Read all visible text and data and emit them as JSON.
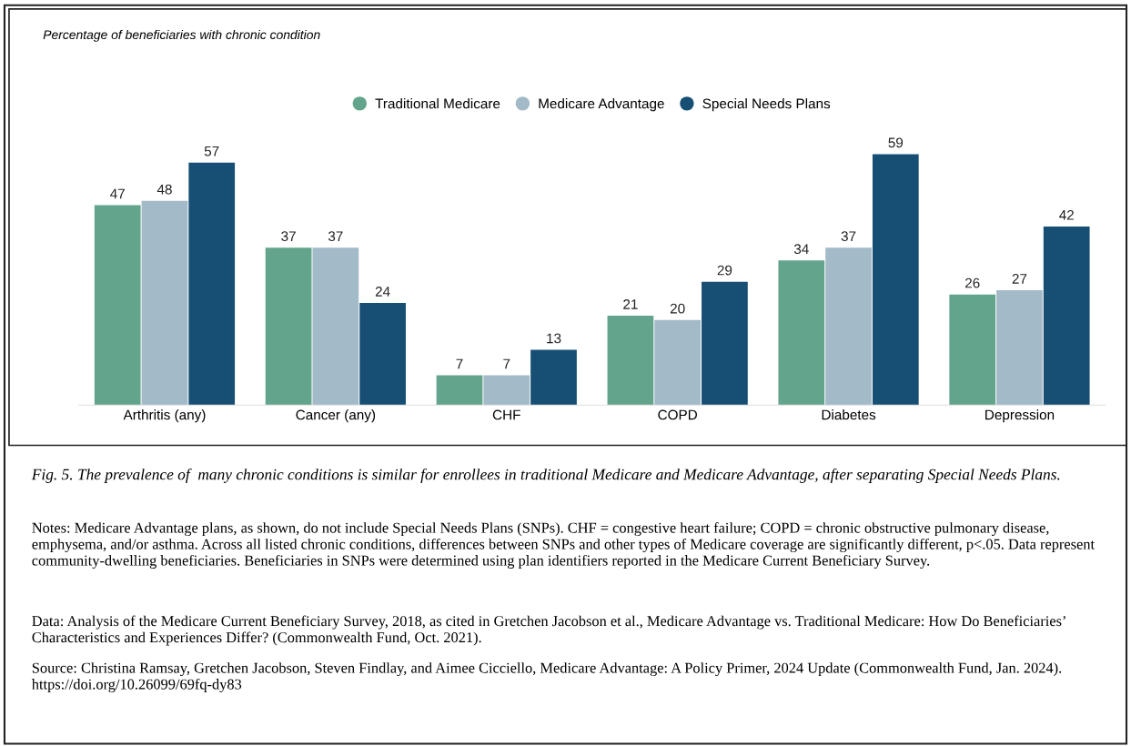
{
  "chart_data": {
    "type": "bar",
    "title": "Percentage of beneficiaries with chronic condition",
    "categories": [
      "Arthritis (any)",
      "Cancer (any)",
      "CHF",
      "COPD",
      "Diabetes",
      "Depression"
    ],
    "series": [
      {
        "name": "Traditional Medicare",
        "color": "#63a58c",
        "values": [
          47,
          37,
          7,
          21,
          34,
          26
        ]
      },
      {
        "name": "Medicare Advantage",
        "color": "#a3bac8",
        "values": [
          48,
          37,
          7,
          20,
          37,
          27
        ]
      },
      {
        "name": "Special Needs Plans",
        "color": "#174f74",
        "values": [
          57,
          24,
          13,
          29,
          59,
          42
        ]
      }
    ],
    "data_labels": true,
    "legend": "top",
    "grid": false,
    "tick_labels": "x",
    "annotations": [
      "Fig. 5. The prevalence of  many chronic conditions is similar for enrollees in traditional Medicare and Medicare Advantage, after separating Special Needs Plans.",
      "Notes: Medicare Advantage plans, as shown, do not include Special Needs Plans (SNPs). CHF = congestive heart failure; COPD = chronic obstructive pulmonary disease, emphysema, and/or asthma. Across all listed chronic conditions, differences between SNPs and other types of Medicare coverage are significantly different, p<.05. Data represent community-dwelling beneficiaries. Beneficiaries in SNPs were determined using plan identifiers reported in the Medicare Current Beneficiary Survey.",
      "Data: Analysis of the Medicare Current Beneficiary Survey, 2018, as cited in Gretchen Jacobson et al., Medicare Advantage vs. Traditional Medicare: How Do Beneficiaries’ Characteristics and Experiences Differ? (Commonwealth Fund, Oct. 2021).",
      "Source: Christina Ramsay, Gretchen Jacobson, Steven Findlay, and Aimee Cicciello, Medicare Advantage: A Policy Primer, 2024 Update (Commonwealth Fund, Jan. 2024). https://doi.org/10.26099/69fq-dy83"
    ]
  }
}
